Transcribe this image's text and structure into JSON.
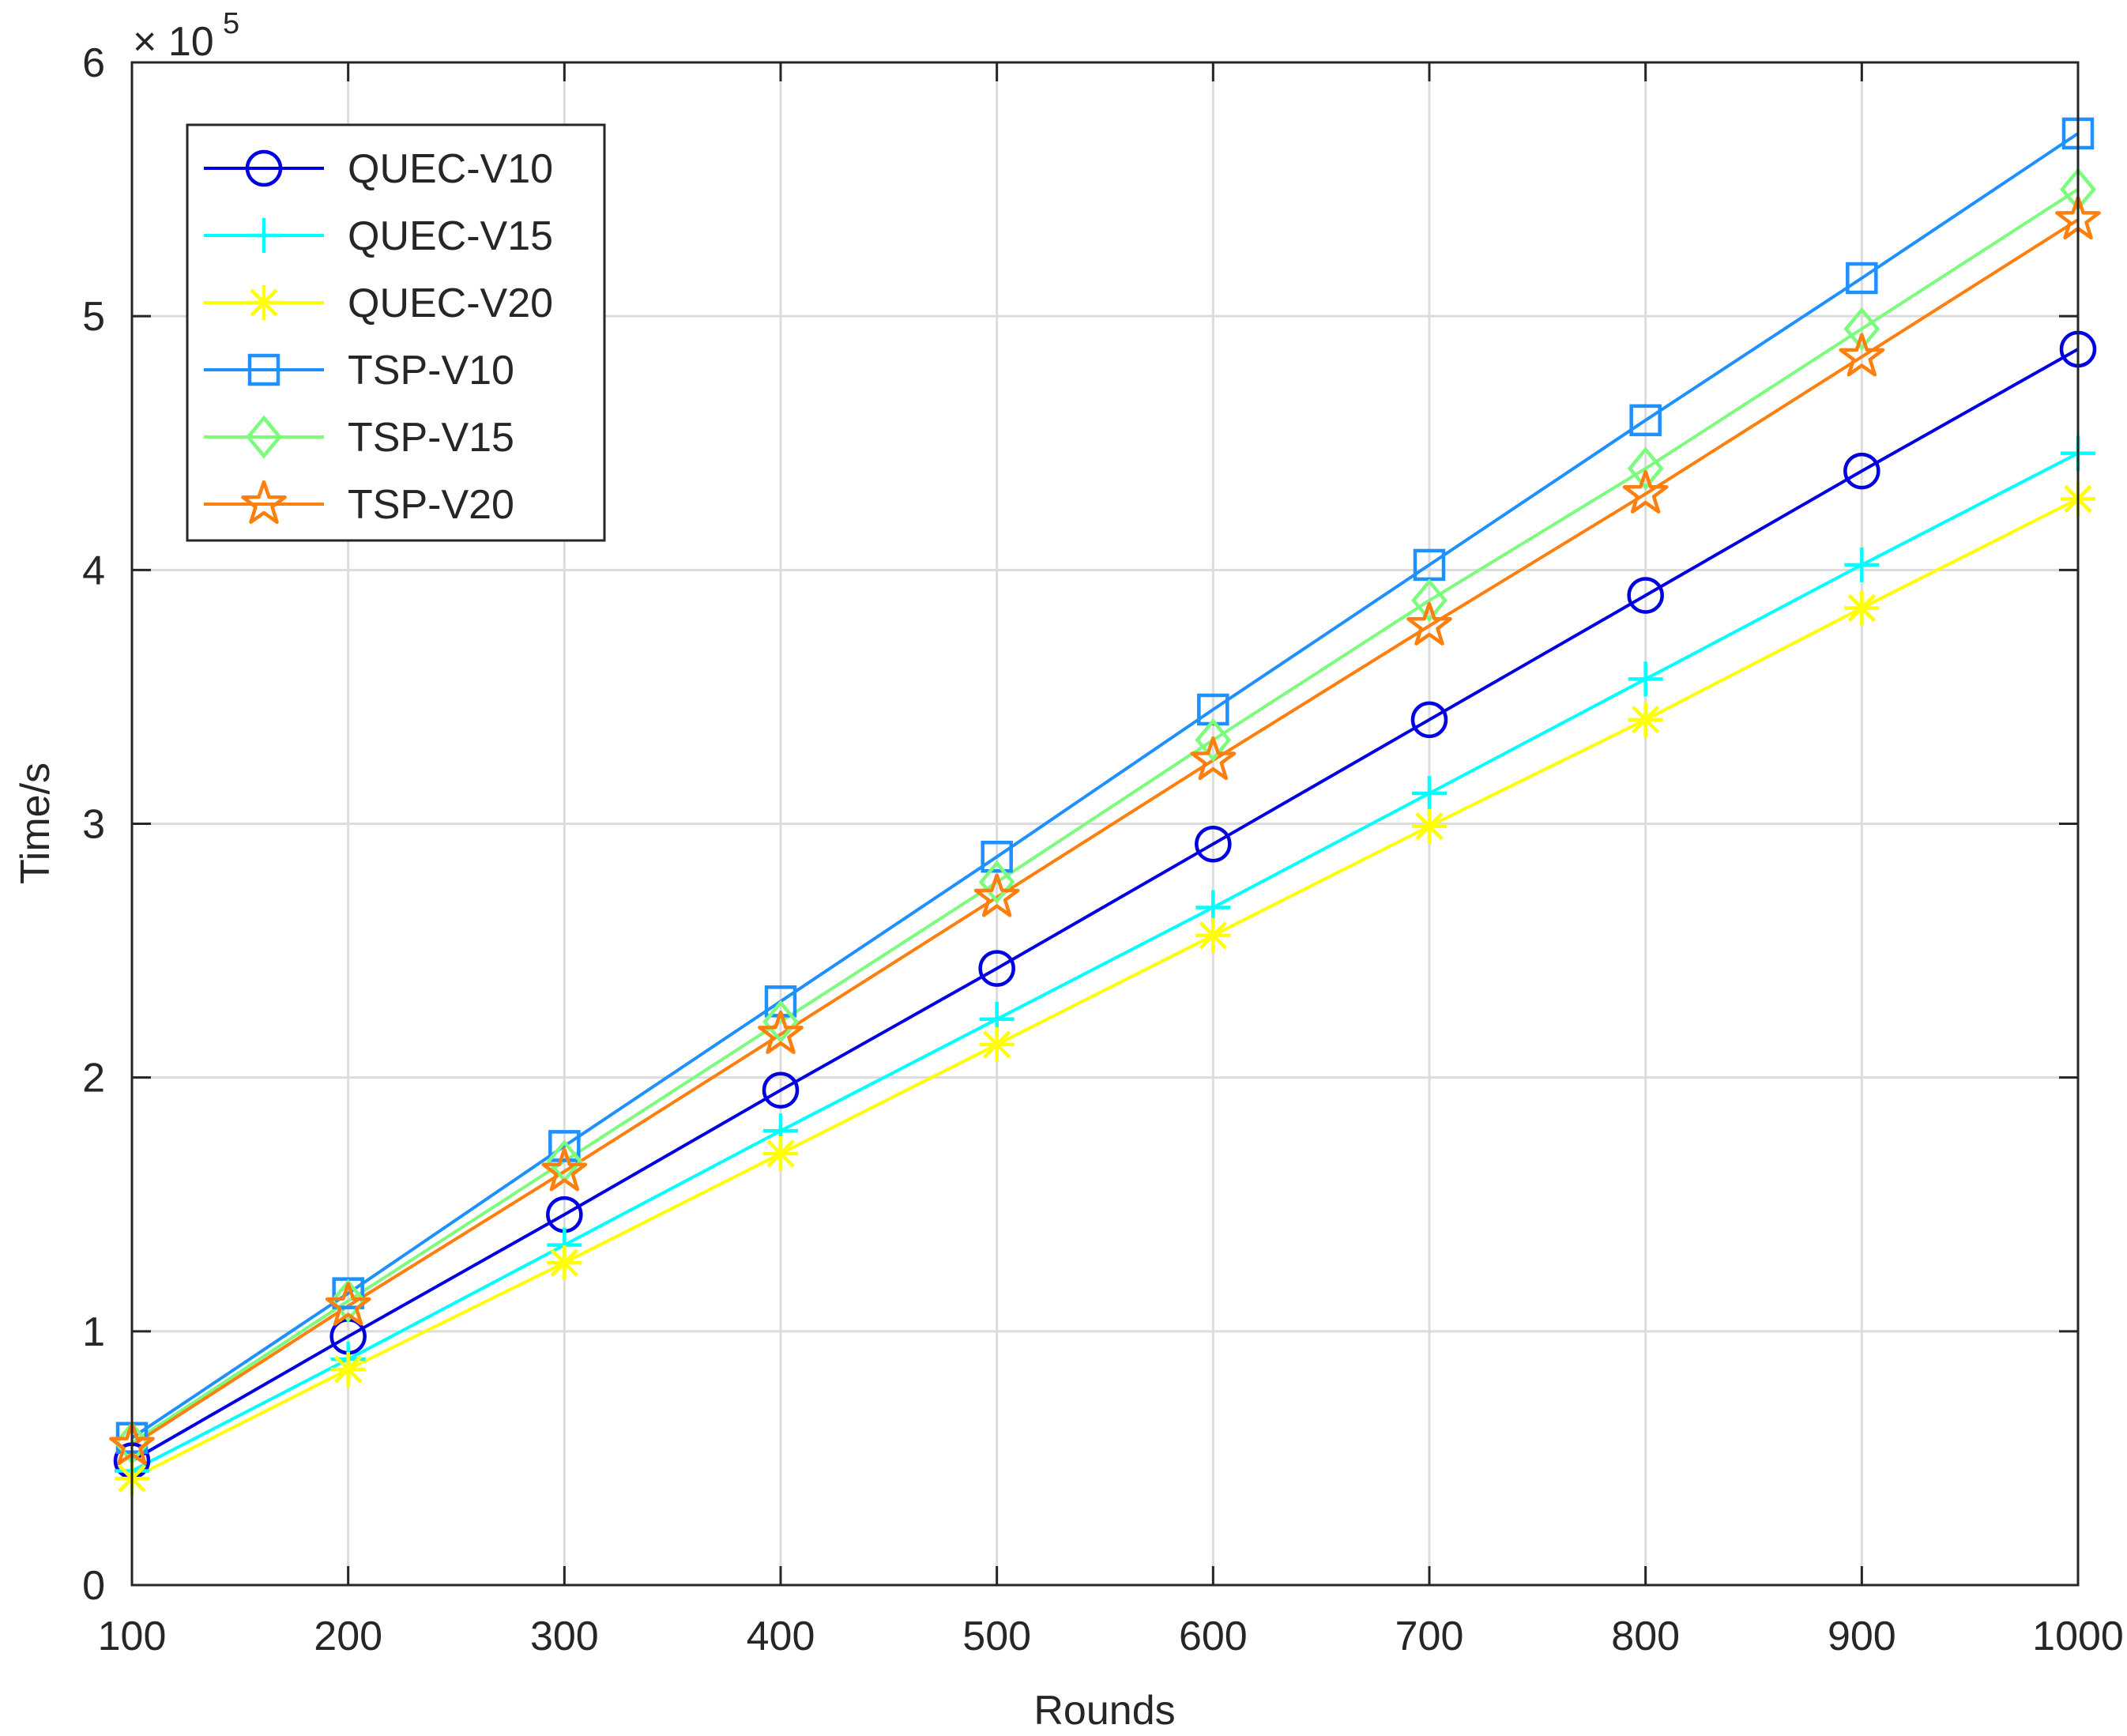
{
  "chart_data": {
    "type": "line",
    "title": "",
    "xlabel": "Rounds",
    "ylabel": "Time/s",
    "y_exponent_label": "× 10",
    "y_exponent": "5",
    "x": [
      100,
      200,
      300,
      400,
      500,
      600,
      700,
      800,
      900,
      1000
    ],
    "xlim": [
      100,
      1000
    ],
    "ylim": [
      0,
      6
    ],
    "xticks": [
      100,
      200,
      300,
      400,
      500,
      600,
      700,
      800,
      900,
      1000
    ],
    "xtick_labels": [
      "100",
      "200",
      "300",
      "400",
      "500",
      "600",
      "700",
      "800",
      "900",
      "1000"
    ],
    "yticks": [
      0,
      1,
      2,
      3,
      4,
      5,
      6
    ],
    "ytick_labels": [
      "0",
      "1",
      "2",
      "3",
      "4",
      "5",
      "6"
    ],
    "grid": true,
    "legend_position": "top-left",
    "series": [
      {
        "name": "QUEC-V10",
        "color": "#0000e0",
        "marker": "circle",
        "values": [
          0.49,
          0.98,
          1.46,
          1.95,
          2.43,
          2.92,
          3.41,
          3.9,
          4.39,
          4.87
        ]
      },
      {
        "name": "QUEC-V15",
        "color": "#00ffff",
        "marker": "plus",
        "values": [
          0.45,
          0.89,
          1.34,
          1.79,
          2.23,
          2.67,
          3.12,
          3.57,
          4.02,
          4.46
        ]
      },
      {
        "name": "QUEC-V20",
        "color": "#ffff00",
        "marker": "asterisk",
        "values": [
          0.42,
          0.85,
          1.27,
          1.7,
          2.13,
          2.56,
          2.99,
          3.41,
          3.85,
          4.28
        ]
      },
      {
        "name": "TSP-V10",
        "color": "#1e90ff",
        "marker": "square",
        "values": [
          0.58,
          1.15,
          1.73,
          2.3,
          2.87,
          3.45,
          4.02,
          4.59,
          5.15,
          5.72
        ]
      },
      {
        "name": "TSP-V15",
        "color": "#7cfc7c",
        "marker": "diamond",
        "values": [
          0.56,
          1.12,
          1.67,
          2.22,
          2.77,
          3.33,
          3.88,
          4.4,
          4.95,
          5.5
        ]
      },
      {
        "name": "TSP-V20",
        "color": "#ff7f0e",
        "marker": "star",
        "values": [
          0.55,
          1.1,
          1.63,
          2.17,
          2.71,
          3.25,
          3.78,
          4.3,
          4.84,
          5.38
        ]
      }
    ]
  }
}
